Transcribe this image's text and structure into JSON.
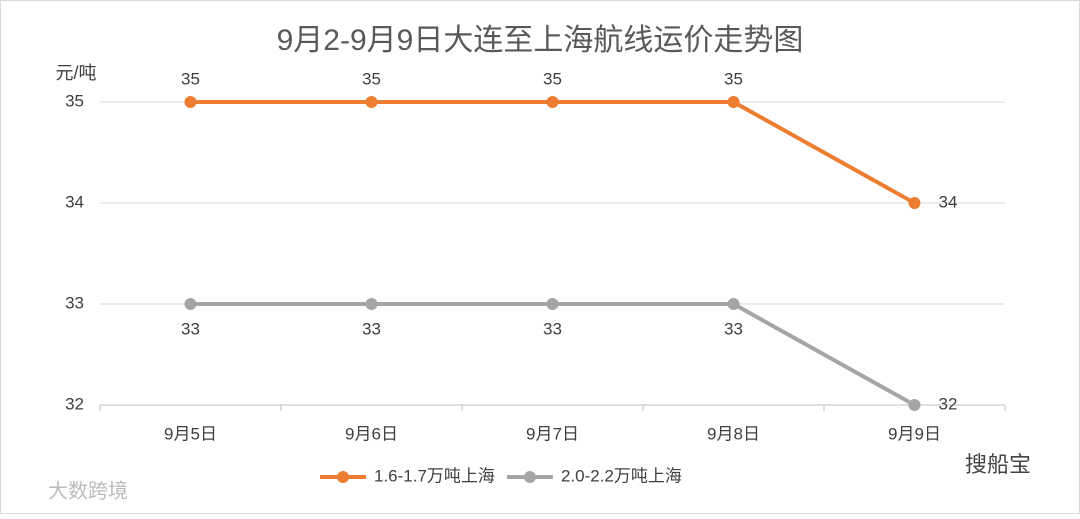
{
  "chart_data": {
    "type": "line",
    "title": "9月2-9月9日大连至上海航线运价走势图",
    "y_label": "元/吨",
    "categories": [
      "9月5日",
      "9月6日",
      "9月7日",
      "9月8日",
      "9月9日"
    ],
    "series": [
      {
        "name": "1.6-1.7万吨上海",
        "color": "#ed7d31",
        "values": [
          35,
          35,
          35,
          35,
          34
        ]
      },
      {
        "name": "2.0-2.2万吨上海",
        "color": "#a5a5a5",
        "values": [
          33,
          33,
          33,
          33,
          32
        ]
      }
    ],
    "ylim": [
      32,
      35
    ],
    "yticks": [
      32,
      33,
      34,
      35
    ],
    "grid": true,
    "legend": "bottom",
    "data_labels": true
  },
  "watermarks": [
    "大数跨境",
    "搜船宝"
  ]
}
